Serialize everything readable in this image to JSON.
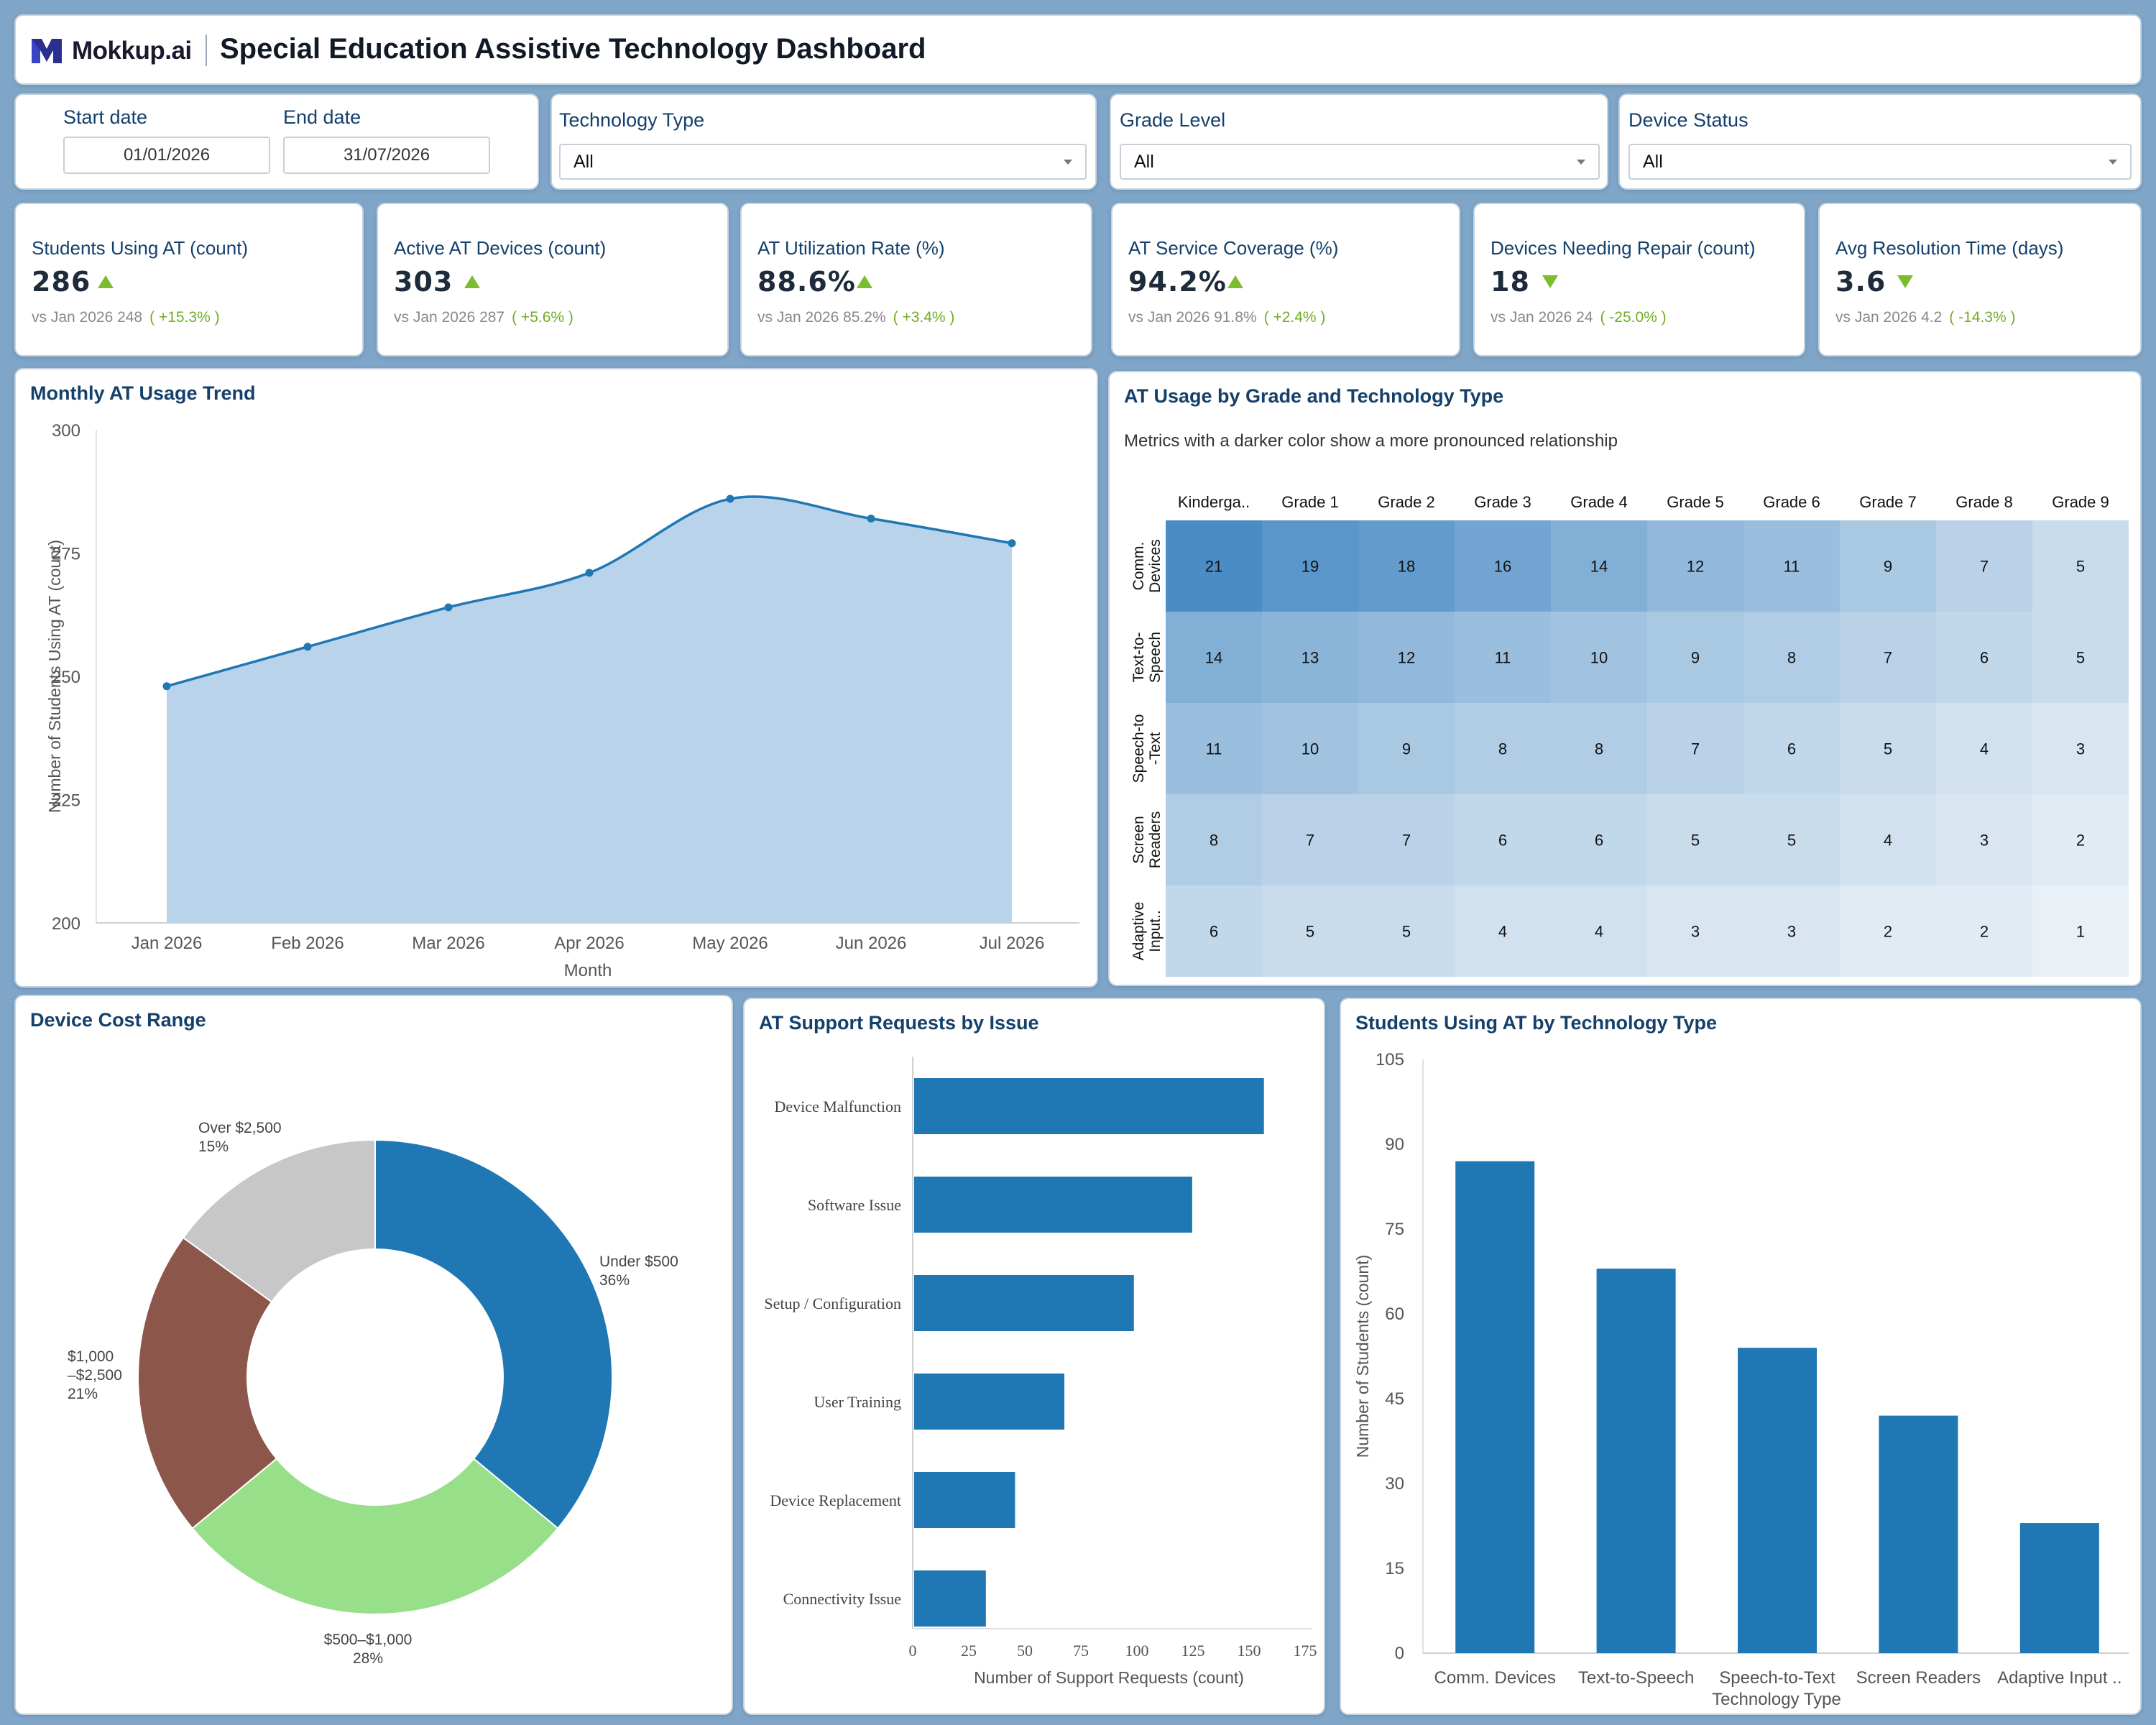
{
  "header": {
    "logo_text": "Mokkup.ai",
    "title": "Special Education Assistive Technology Dashboard"
  },
  "filters": {
    "start_label": "Start date",
    "start_value": "01/01/2026",
    "end_label": "End date",
    "end_value": "31/07/2026",
    "tech_label": "Technology Type",
    "tech_value": "All",
    "grade_label": "Grade Level",
    "grade_value": "All",
    "status_label": "Device Status",
    "status_value": "All"
  },
  "kpis": [
    {
      "title": "Students Using AT (count)",
      "value": "286",
      "trend": "up",
      "compare": "vs Jan 2026 248",
      "change": "( +15.3% )"
    },
    {
      "title": "Active AT Devices (count)",
      "value": "303",
      "trend": "up",
      "compare": "vs Jan 2026 287",
      "change": "( +5.6% )"
    },
    {
      "title": "AT Utilization Rate (%)",
      "value": "88.6%",
      "trend": "up",
      "compare": "vs Jan 2026 85.2%",
      "change": "( +3.4% )"
    },
    {
      "title": "AT Service Coverage (%)",
      "value": "94.2%",
      "trend": "up",
      "compare": "vs Jan 2026 91.8%",
      "change": "( +2.4% )"
    },
    {
      "title": "Devices Needing Repair (count)",
      "value": "18",
      "trend": "down",
      "compare": "vs Jan 2026 24",
      "change": "( -25.0% )"
    },
    {
      "title": "Avg Resolution Time (days)",
      "value": "3.6",
      "trend": "down",
      "compare": "vs Jan 2026 4.2",
      "change": "( -14.3% )"
    }
  ],
  "colors": {
    "primary": "#1f77b4",
    "area_fill": "#b9d4ea",
    "kpi_positive": "#7cbc2f",
    "heat_low": "#f1f5f9",
    "heat_high": "#4a8cc4"
  },
  "chart_data": [
    {
      "type": "area",
      "title": "Monthly AT Usage Trend",
      "xlabel": "Month",
      "ylabel": "Number of Students Using AT (count)",
      "x": [
        "Jan 2026",
        "Feb 2026",
        "Mar 2026",
        "Apr 2026",
        "May 2026",
        "Jun 2026",
        "Jul 2026"
      ],
      "values": [
        248,
        256,
        264,
        271,
        286,
        282,
        277
      ],
      "ylim": [
        200,
        300
      ],
      "yticks": [
        200,
        225,
        250,
        275,
        300
      ]
    },
    {
      "type": "heatmap",
      "title": "AT Usage by Grade and Technology Type",
      "subtitle": "Metrics with a darker color show a more pronounced relationship",
      "columns": [
        "Kinderga..",
        "Grade 1",
        "Grade 2",
        "Grade 3",
        "Grade 4",
        "Grade 5",
        "Grade 6",
        "Grade 7",
        "Grade 8",
        "Grade 9"
      ],
      "rows": [
        {
          "label": [
            "Comm.",
            "Devices"
          ],
          "values": [
            21,
            19,
            18,
            16,
            14,
            12,
            11,
            9,
            7,
            5
          ]
        },
        {
          "label": [
            "Text-to-",
            "Speech"
          ],
          "values": [
            14,
            13,
            12,
            11,
            10,
            9,
            8,
            7,
            6,
            5
          ]
        },
        {
          "label": [
            "Speech-to",
            "-Text"
          ],
          "values": [
            11,
            10,
            9,
            8,
            8,
            7,
            6,
            5,
            4,
            3
          ]
        },
        {
          "label": [
            "Screen",
            "Readers"
          ],
          "values": [
            8,
            7,
            7,
            6,
            6,
            5,
            5,
            4,
            3,
            2
          ]
        },
        {
          "label": [
            "Adaptive",
            "Input.."
          ],
          "values": [
            6,
            5,
            5,
            4,
            4,
            3,
            3,
            2,
            2,
            1
          ]
        }
      ]
    },
    {
      "type": "pie",
      "title": "Device Cost Range",
      "slices": [
        {
          "label": [
            "Under $500"
          ],
          "pct": "36%",
          "value": 36,
          "color": "#1f77b4"
        },
        {
          "label": [
            "$500–$1,000"
          ],
          "pct": "28%",
          "value": 28,
          "color": "#98df8a"
        },
        {
          "label": [
            "$1,000",
            "–$2,500"
          ],
          "pct": "21%",
          "value": 21,
          "color": "#8c564b"
        },
        {
          "label": [
            "Over $2,500"
          ],
          "pct": "15%",
          "value": 15,
          "color": "#c7c7c7"
        }
      ]
    },
    {
      "type": "bar",
      "orientation": "horizontal",
      "title": "AT Support Requests by Issue",
      "xlabel": "Number of Support Requests (count)",
      "categories": [
        "Device Malfunction",
        "Software Issue",
        "Setup / Configuration",
        "User Training",
        "Device Replacement",
        "Connectivity Issue"
      ],
      "values": [
        156,
        124,
        98,
        67,
        45,
        32
      ],
      "xlim": [
        0,
        175
      ],
      "xticks": [
        0,
        25,
        50,
        75,
        100,
        125,
        150,
        175
      ]
    },
    {
      "type": "bar",
      "title": "Students Using AT by Technology Type",
      "xlabel": "Technology Type",
      "ylabel": "Number of Students (count)",
      "categories": [
        "Comm. Devices",
        "Text-to-Speech",
        "Speech-to-Text",
        "Screen Readers",
        "Adaptive Input .."
      ],
      "values": [
        87,
        68,
        54,
        42,
        23
      ],
      "ylim": [
        0,
        105
      ],
      "yticks": [
        0,
        15,
        30,
        45,
        60,
        75,
        90,
        105
      ]
    }
  ]
}
